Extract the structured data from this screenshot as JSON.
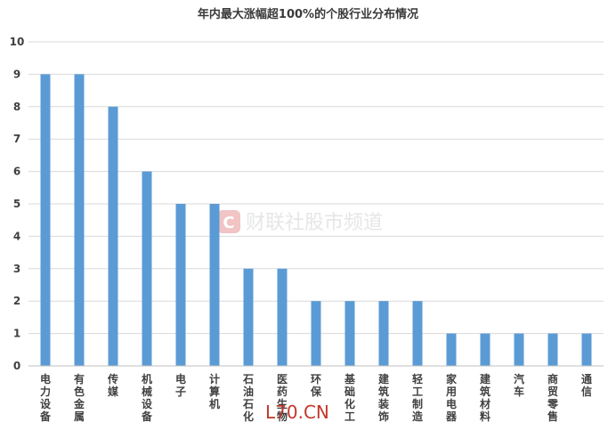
{
  "chart_data": {
    "type": "bar",
    "title": "年内最大涨幅超100%的个股行业分布情况",
    "categories": [
      "电力设备",
      "有色金属",
      "传媒",
      "机械设备",
      "电子",
      "计算机",
      "石油石化",
      "医药生物",
      "环保",
      "基础化工",
      "建筑装饰",
      "轻工制造",
      "家用电器",
      "建筑材料",
      "汽车",
      "商贸零售",
      "通信"
    ],
    "values": [
      9,
      9,
      8,
      6,
      5,
      5,
      3,
      3,
      2,
      2,
      2,
      2,
      1,
      1,
      1,
      1,
      1
    ],
    "ylim": [
      0,
      10
    ],
    "yticks": [
      0,
      1,
      2,
      3,
      4,
      5,
      6,
      7,
      8,
      9,
      10
    ],
    "grid": true,
    "legend": "none",
    "bar_color": "#5b9bd5",
    "grid_color": "#d9d9d9",
    "axis_color": "#bfbfbf"
  },
  "watermark": {
    "logo_letter": "C",
    "text": "财联社股市频道",
    "site": "L70.CN",
    "logo_color": "#f2c4c4"
  }
}
